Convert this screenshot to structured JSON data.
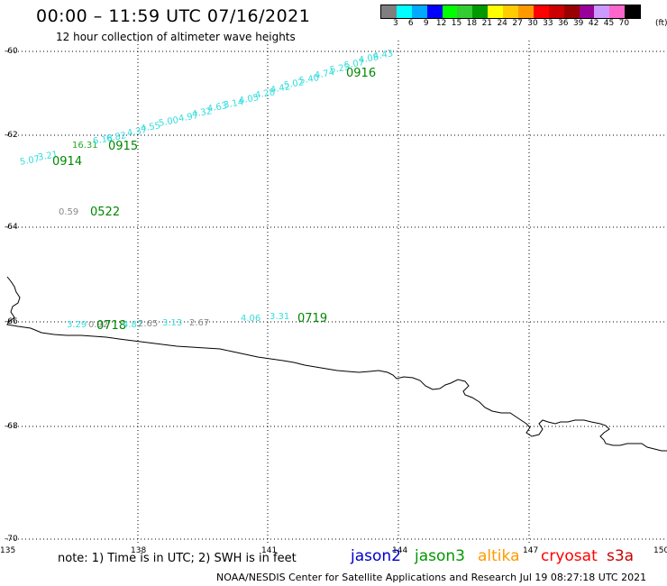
{
  "header": {
    "title": "00:00 – 11:59 UTC 07/16/2021",
    "subtitle": "12 hour collection of altimeter wave heights"
  },
  "legend": {
    "colors": [
      "#7f7f7f",
      "#00ffff",
      "#00aaff",
      "#0000ff",
      "#00ff00",
      "#33cc33",
      "#009900",
      "#ffff00",
      "#ffcc00",
      "#ff9900",
      "#ff0000",
      "#cc0000",
      "#990000",
      "#990099",
      "#cc99ff",
      "#ff66cc",
      "#000000"
    ],
    "labels": [
      "3",
      "6",
      "9",
      "12",
      "15",
      "18",
      "21",
      "24",
      "27",
      "30",
      "33",
      "36",
      "39",
      "42",
      "45",
      "70"
    ],
    "unit": "(ft)"
  },
  "axes": {
    "lat_labels": [
      "-60",
      "-62",
      "-64",
      "-66",
      "-68",
      "-70"
    ],
    "lon_labels": [
      "135",
      "138",
      "141",
      "144",
      "147",
      "150"
    ]
  },
  "observations": [
    {
      "text": "5.07",
      "color": "#33dddd"
    },
    {
      "text": "3.21",
      "color": "#33dddd"
    },
    {
      "text": "0914",
      "color": "#008800"
    },
    {
      "text": "16.31",
      "color": "#22aa22"
    },
    {
      "text": "6.18",
      "color": "#33dddd"
    },
    {
      "text": "6.82",
      "color": "#33dddd"
    },
    {
      "text": "0915",
      "color": "#008800"
    },
    {
      "text": "4.37",
      "color": "#33dddd"
    },
    {
      "text": "4.55",
      "color": "#33dddd"
    },
    {
      "text": "5.00",
      "color": "#33dddd"
    },
    {
      "text": "4.97",
      "color": "#33dddd"
    },
    {
      "text": "4.32",
      "color": "#33dddd"
    },
    {
      "text": "4.63",
      "color": "#33dddd"
    },
    {
      "text": "3.14",
      "color": "#33dddd"
    },
    {
      "text": "4.05",
      "color": "#33dddd"
    },
    {
      "text": "4.28",
      "color": "#33dddd"
    },
    {
      "text": "4.42",
      "color": "#33dddd"
    },
    {
      "text": "5.02",
      "color": "#33dddd"
    },
    {
      "text": "5.40",
      "color": "#33dddd"
    },
    {
      "text": "4.74",
      "color": "#33dddd"
    },
    {
      "text": "5.25",
      "color": "#33dddd"
    },
    {
      "text": "5.07",
      "color": "#33dddd"
    },
    {
      "text": "4.08",
      "color": "#33dddd"
    },
    {
      "text": "4.43",
      "color": "#33dddd"
    },
    {
      "text": "0916",
      "color": "#008800"
    },
    {
      "text": "0.59",
      "color": "#888888"
    },
    {
      "text": "0522",
      "color": "#008800"
    },
    {
      "text": "3.29",
      "color": "#33dddd"
    },
    {
      "text": "0.92",
      "color": "#888888"
    },
    {
      "text": "0718",
      "color": "#008800"
    },
    {
      "text": "4.87",
      "color": "#33dddd"
    },
    {
      "text": "2.65",
      "color": "#888888"
    },
    {
      "text": "3.13",
      "color": "#33dddd"
    },
    {
      "text": "2.67",
      "color": "#888888"
    },
    {
      "text": "4.06",
      "color": "#33dddd"
    },
    {
      "text": "3.31",
      "color": "#33dddd"
    },
    {
      "text": "0719",
      "color": "#008800"
    }
  ],
  "footer": {
    "note": "note:  1) Time is in UTC;  2) SWH is in feet",
    "satellites": [
      {
        "name": "jason2",
        "color": "#0000cc"
      },
      {
        "name": "jason3",
        "color": "#009900"
      },
      {
        "name": "altika",
        "color": "#ff9900"
      },
      {
        "name": "cryosat",
        "color": "#ff0000"
      },
      {
        "name": "s3a",
        "color": "#cc0000"
      }
    ],
    "credit": "NOAA/NESDIS Center for Satellite Applications and Research     Jul 19 08:27:18 UTC 2021"
  }
}
